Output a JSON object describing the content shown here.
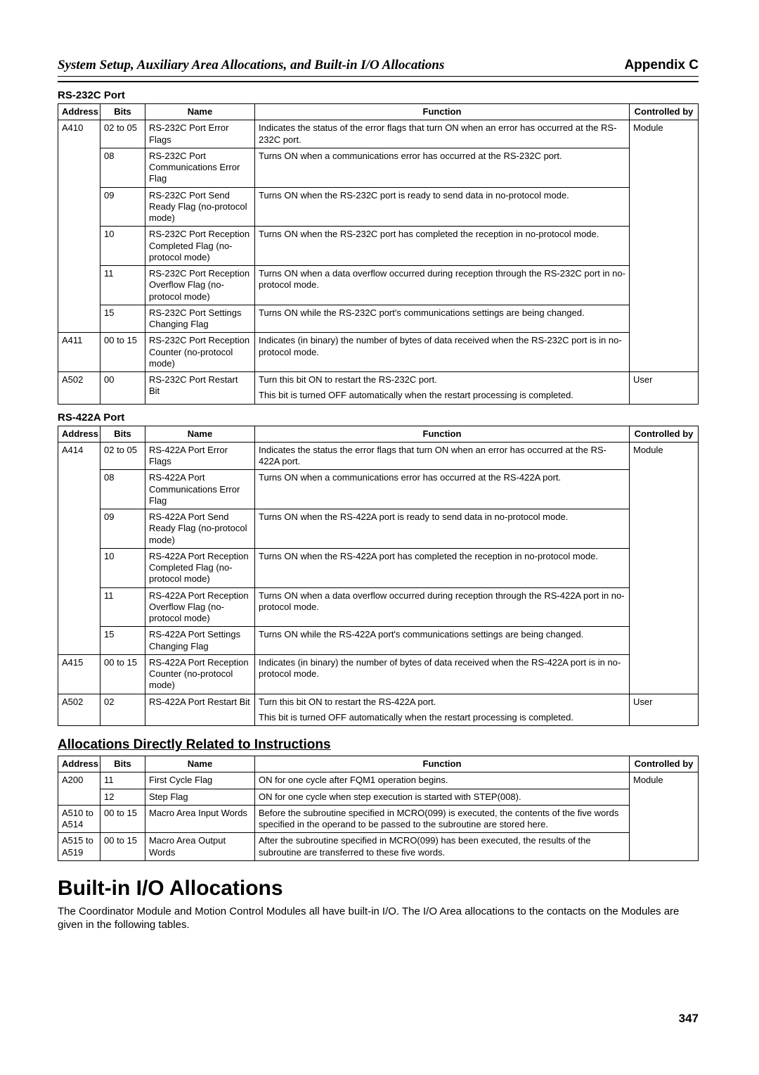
{
  "header": {
    "left": "System Setup, Auxiliary Area Allocations, and Built-in I/O Allocations",
    "right": "Appendix C"
  },
  "rs232c": {
    "title": "RS-232C Port",
    "headers": [
      "Address",
      "Bits",
      "Name",
      "Function",
      "Controlled by"
    ],
    "rows": [
      {
        "addr": "A410",
        "bits": "02 to 05",
        "name": "RS-232C Port Error Flags",
        "func": "Indicates the status of the error flags that turn ON when an error has occurred at the RS-232C port.",
        "ctrl": "Module"
      },
      {
        "addr": "",
        "bits": "08",
        "name": "RS-232C Port Communications Error Flag",
        "func": "Turns ON when a communications error has occurred at the RS-232C port.",
        "ctrl": ""
      },
      {
        "addr": "",
        "bits": "09",
        "name": "RS-232C Port Send Ready Flag (no-protocol mode)",
        "func": "Turns ON when the RS-232C port is ready to send data in no-protocol mode.",
        "ctrl": ""
      },
      {
        "addr": "",
        "bits": "10",
        "name": "RS-232C Port Reception Completed Flag (no-protocol mode)",
        "func": "Turns ON when the RS-232C port has completed the reception in no-protocol mode.",
        "ctrl": ""
      },
      {
        "addr": "",
        "bits": "11",
        "name": "RS-232C Port Reception Overflow Flag (no-protocol mode)",
        "func": "Turns ON when a data overflow occurred during reception through the RS-232C port in no-protocol mode.",
        "ctrl": ""
      },
      {
        "addr": "",
        "bits": "15",
        "name": "RS-232C Port Settings Changing Flag",
        "func": "Turns ON while the RS-232C port's communications settings are being changed.",
        "ctrl": ""
      },
      {
        "addr": "A411",
        "bits": "00 to 15",
        "name": "RS-232C Port Reception Counter (no-protocol mode)",
        "func": "Indicates (in binary) the number of bytes of data received when the RS-232C port is in no-protocol mode.",
        "ctrl": ""
      },
      {
        "addr": "A502",
        "bits": "00",
        "name": "RS-232C Port Restart Bit",
        "func1": "Turn this bit ON to restart the RS-232C port.",
        "func2": "This bit is turned OFF automatically when the restart processing is completed.",
        "ctrl": "User"
      }
    ]
  },
  "rs422a": {
    "title": "RS-422A Port",
    "headers": [
      "Address",
      "Bits",
      "Name",
      "Function",
      "Controlled by"
    ],
    "rows": [
      {
        "addr": "A414",
        "bits": "02 to 05",
        "name": "RS-422A Port Error Flags",
        "func": "Indicates the status the error flags that turn ON when an error has occurred at the RS-422A port.",
        "ctrl": "Module"
      },
      {
        "addr": "",
        "bits": "08",
        "name": "RS-422A Port Communications Error Flag",
        "func": "Turns ON when a communications error has occurred at the RS-422A port.",
        "ctrl": ""
      },
      {
        "addr": "",
        "bits": "09",
        "name": "RS-422A Port Send Ready Flag (no-protocol mode)",
        "func": "Turns ON when the RS-422A port is ready to send data in no-protocol mode.",
        "ctrl": ""
      },
      {
        "addr": "",
        "bits": "10",
        "name": "RS-422A Port Reception Completed Flag (no-protocol mode)",
        "func": "Turns ON when the RS-422A port has completed the reception in no-protocol mode.",
        "ctrl": ""
      },
      {
        "addr": "",
        "bits": "11",
        "name": "RS-422A Port Reception Overflow Flag (no-protocol mode)",
        "func": "Turns ON when a data overflow occurred during reception through the RS-422A port in no-protocol mode.",
        "ctrl": ""
      },
      {
        "addr": "",
        "bits": "15",
        "name": "RS-422A Port Settings Changing Flag",
        "func": "Turns ON while the RS-422A port's communications settings are being changed.",
        "ctrl": ""
      },
      {
        "addr": "A415",
        "bits": "00 to 15",
        "name": "RS-422A Port Reception Counter (no-protocol mode)",
        "func": "Indicates (in binary) the number of bytes of data received when the RS-422A port is in no-protocol mode.",
        "ctrl": ""
      },
      {
        "addr": "A502",
        "bits": "02",
        "name": "RS-422A Port Restart Bit",
        "func1": "Turn this bit ON to restart the RS-422A port.",
        "func2": "This bit is turned OFF automatically when the restart processing is completed.",
        "ctrl": "User"
      }
    ]
  },
  "alloc": {
    "title": "Allocations Directly Related to Instructions",
    "headers": [
      "Address",
      "Bits",
      "Name",
      "Function",
      "Controlled by"
    ],
    "rows": [
      {
        "addr": "A200",
        "bits": "11",
        "name": "First Cycle Flag",
        "func": "ON for one cycle after FQM1 operation begins.",
        "ctrl": "Module"
      },
      {
        "addr": "",
        "bits": "12",
        "name": "Step Flag",
        "func": "ON for one cycle when step execution is started with STEP(008).",
        "ctrl": ""
      },
      {
        "addr": "A510 to A514",
        "bits": "00 to 15",
        "name": "Macro Area Input Words",
        "func": "Before the subroutine specified in MCRO(099) is executed, the contents of the five words specified in the operand to be passed to the subroutine are stored here.",
        "ctrl": ""
      },
      {
        "addr": "A515 to A519",
        "bits": "00 to 15",
        "name": "Macro Area Output Words",
        "func": "After the subroutine specified in MCRO(099) has been executed, the results of the subroutine are transferred to these five words.",
        "ctrl": ""
      }
    ]
  },
  "builtin": {
    "title": "Built-in I/O Allocations",
    "para": "The Coordinator Module and Motion Control Modules all have built-in I/O. The I/O Area allocations to the contacts on the Modules are given in the following tables."
  },
  "page_number": "347"
}
